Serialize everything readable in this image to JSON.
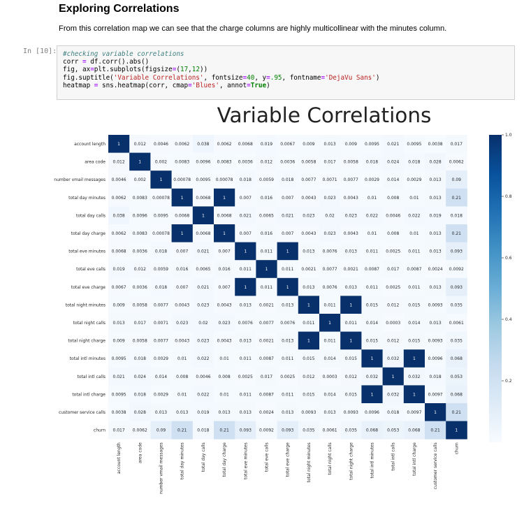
{
  "markdown": {
    "heading": "Exploring Correlations",
    "text": "From this correlation map we can see that the charge columns are highly multicollinear with the minutes column."
  },
  "code_cell": {
    "prompt": "In [10]:",
    "lines": {
      "l1": "#checking variable correlations",
      "l2a": "corr ",
      "l2b": "=",
      "l2c": " df.corr().abs()",
      "l3a": "fig, ax",
      "l3b": "=",
      "l3c": "plt.subplots(figsize",
      "l3d": "=",
      "l3e": "(",
      "l3f": "17",
      "l3g": ",",
      "l3h": "12",
      "l3i": "))",
      "l4a": "fig.suptitle(",
      "l4b": "'Variable Correlations'",
      "l4c": ", fontsize",
      "l4d": "=",
      "l4e": "40",
      "l4f": ", y",
      "l4g": "=",
      "l4h": ".95",
      "l4i": ", fontname",
      "l4j": "=",
      "l4k": "'DejaVu Sans'",
      "l4l": ")",
      "l5a": "heatmap ",
      "l5b": "=",
      "l5c": " sns.heatmap(corr, cmap",
      "l5d": "=",
      "l5e": "'Blues'",
      "l5f": ", annot",
      "l5g": "=",
      "l5h": "True",
      "l5i": ")"
    }
  },
  "chart_data": {
    "type": "heatmap",
    "title": "Variable Correlations",
    "cmap": "Blues",
    "colorbar_ticks": [
      "1.0",
      "0.8",
      "0.6",
      "0.4",
      "0.2"
    ],
    "colorbar_tick_values": [
      1.0,
      0.8,
      0.6,
      0.4,
      0.2
    ],
    "colorbar_range": [
      0.0,
      1.0
    ],
    "labels": [
      "account length",
      "area code",
      "number vmail messages",
      "total day minutes",
      "total day calls",
      "total day charge",
      "total eve minutes",
      "total eve calls",
      "total eve charge",
      "total night minutes",
      "total night calls",
      "total night charge",
      "total intl minutes",
      "total intl calls",
      "total intl charge",
      "customer service calls",
      "churn"
    ],
    "annotations": [
      [
        "1",
        "0.012",
        "0.0046",
        "0.0062",
        "0.038",
        "0.0062",
        "0.0068",
        "0.019",
        "0.0067",
        "0.009",
        "0.013",
        "0.009",
        "0.0095",
        "0.021",
        "0.0095",
        "0.0038",
        "0.017"
      ],
      [
        "0.012",
        "1",
        "0.002",
        "0.0083",
        "0.0096",
        "0.0083",
        "0.0036",
        "0.012",
        "0.0036",
        "0.0058",
        "0.017",
        "0.0058",
        "0.018",
        "0.024",
        "0.018",
        "0.028",
        "0.0062"
      ],
      [
        "0.0046",
        "0.002",
        "1",
        "0.00078",
        "0.0095",
        "0.00078",
        "0.018",
        "0.0059",
        "0.018",
        "0.0077",
        "0.0071",
        "0.0077",
        "0.0029",
        "0.014",
        "0.0029",
        "0.013",
        "0.09"
      ],
      [
        "0.0062",
        "0.0083",
        "0.00078",
        "1",
        "0.0068",
        "1",
        "0.007",
        "0.016",
        "0.007",
        "0.0043",
        "0.023",
        "0.0043",
        "0.01",
        "0.008",
        "0.01",
        "0.013",
        "0.21"
      ],
      [
        "0.038",
        "0.0096",
        "0.0095",
        "0.0068",
        "1",
        "0.0068",
        "0.021",
        "0.0065",
        "0.021",
        "0.023",
        "0.02",
        "0.023",
        "0.022",
        "0.0046",
        "0.022",
        "0.019",
        "0.018"
      ],
      [
        "0.0062",
        "0.0083",
        "0.00078",
        "1",
        "0.0068",
        "1",
        "0.007",
        "0.016",
        "0.007",
        "0.0043",
        "0.023",
        "0.0043",
        "0.01",
        "0.008",
        "0.01",
        "0.013",
        "0.21"
      ],
      [
        "0.0068",
        "0.0036",
        "0.018",
        "0.007",
        "0.021",
        "0.007",
        "1",
        "0.011",
        "1",
        "0.013",
        "0.0076",
        "0.013",
        "0.011",
        "0.0025",
        "0.011",
        "0.013",
        "0.093"
      ],
      [
        "0.019",
        "0.012",
        "0.0059",
        "0.016",
        "0.0065",
        "0.016",
        "0.011",
        "1",
        "0.011",
        "0.0021",
        "0.0077",
        "0.0021",
        "0.0087",
        "0.017",
        "0.0087",
        "0.0024",
        "0.0092"
      ],
      [
        "0.0067",
        "0.0036",
        "0.018",
        "0.007",
        "0.021",
        "0.007",
        "1",
        "0.011",
        "1",
        "0.013",
        "0.0076",
        "0.013",
        "0.011",
        "0.0025",
        "0.011",
        "0.013",
        "0.093"
      ],
      [
        "0.009",
        "0.0058",
        "0.0077",
        "0.0043",
        "0.023",
        "0.0043",
        "0.013",
        "0.0021",
        "0.013",
        "1",
        "0.011",
        "1",
        "0.015",
        "0.012",
        "0.015",
        "0.0093",
        "0.035"
      ],
      [
        "0.013",
        "0.017",
        "0.0071",
        "0.023",
        "0.02",
        "0.023",
        "0.0076",
        "0.0077",
        "0.0076",
        "0.011",
        "1",
        "0.011",
        "0.014",
        "0.0003",
        "0.014",
        "0.013",
        "0.0061"
      ],
      [
        "0.009",
        "0.0058",
        "0.0077",
        "0.0043",
        "0.023",
        "0.0043",
        "0.013",
        "0.0021",
        "0.013",
        "1",
        "0.011",
        "1",
        "0.015",
        "0.012",
        "0.015",
        "0.0093",
        "0.035"
      ],
      [
        "0.0095",
        "0.018",
        "0.0029",
        "0.01",
        "0.022",
        "0.01",
        "0.011",
        "0.0087",
        "0.011",
        "0.015",
        "0.014",
        "0.015",
        "1",
        "0.032",
        "1",
        "0.0096",
        "0.068"
      ],
      [
        "0.021",
        "0.024",
        "0.014",
        "0.008",
        "0.0046",
        "0.008",
        "0.0025",
        "0.017",
        "0.0025",
        "0.012",
        "0.0003",
        "0.012",
        "0.032",
        "1",
        "0.032",
        "0.018",
        "0.053"
      ],
      [
        "0.0095",
        "0.018",
        "0.0029",
        "0.01",
        "0.022",
        "0.01",
        "0.011",
        "0.0087",
        "0.011",
        "0.015",
        "0.014",
        "0.015",
        "1",
        "0.032",
        "1",
        "0.0097",
        "0.068"
      ],
      [
        "0.0038",
        "0.028",
        "0.013",
        "0.013",
        "0.019",
        "0.013",
        "0.013",
        "0.0024",
        "0.013",
        "0.0093",
        "0.013",
        "0.0093",
        "0.0096",
        "0.018",
        "0.0097",
        "1",
        "0.21"
      ],
      [
        "0.017",
        "0.0062",
        "0.09",
        "0.21",
        "0.018",
        "0.21",
        "0.093",
        "0.0092",
        "0.093",
        "0.035",
        "0.0061",
        "0.035",
        "0.068",
        "0.053",
        "0.068",
        "0.21",
        "1"
      ]
    ]
  }
}
